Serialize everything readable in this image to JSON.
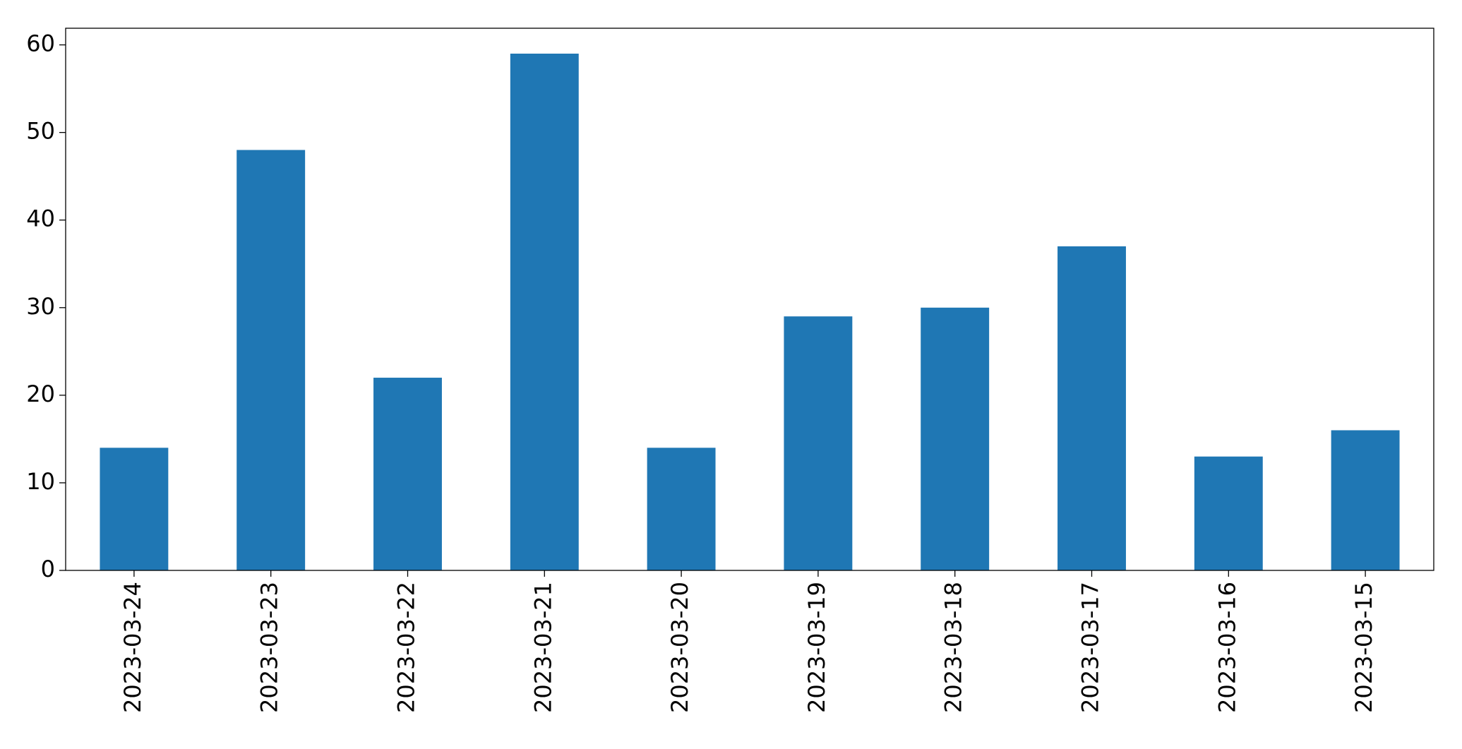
{
  "chart_data": {
    "type": "bar",
    "categories": [
      "2023-03-24",
      "2023-03-23",
      "2023-03-22",
      "2023-03-21",
      "2023-03-20",
      "2023-03-19",
      "2023-03-18",
      "2023-03-17",
      "2023-03-16",
      "2023-03-15"
    ],
    "values": [
      14,
      48,
      22,
      59,
      14,
      29,
      30,
      37,
      13,
      16
    ],
    "color": "#1f77b4",
    "ylim": [
      0,
      61.9
    ],
    "yticks": [
      0,
      10,
      20,
      30,
      40,
      50,
      60
    ],
    "grid": false
  }
}
